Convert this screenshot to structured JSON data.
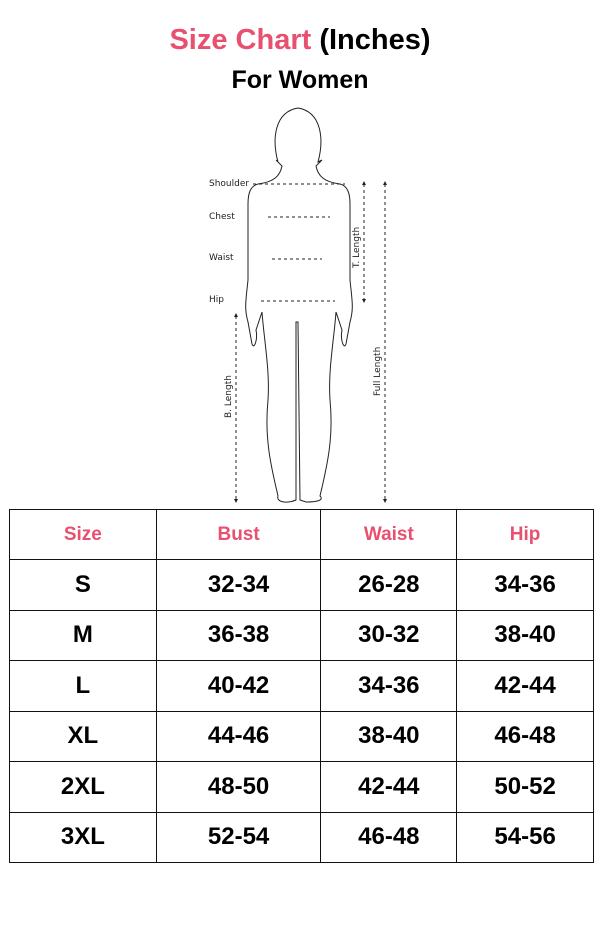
{
  "title": {
    "accent": "Size Chart",
    "rest": "(Inches)"
  },
  "subtitle": "For Women",
  "figure": {
    "labels": {
      "shoulder": "Shoulder",
      "chest": "Chest",
      "waist": "Waist",
      "hip": "Hip",
      "t_length": "T. Length",
      "b_length": "B. Length",
      "full_length": "Full  Length"
    }
  },
  "colors": {
    "accent": "#e8506f"
  },
  "table": {
    "headers": [
      "Size",
      "Bust",
      "Waist",
      "Hip"
    ],
    "rows": [
      [
        "S",
        "32-34",
        "26-28",
        "34-36"
      ],
      [
        "M",
        "36-38",
        "30-32",
        "38-40"
      ],
      [
        "L",
        "40-42",
        "34-36",
        "42-44"
      ],
      [
        "XL",
        "44-46",
        "38-40",
        "46-48"
      ],
      [
        "2XL",
        "48-50",
        "42-44",
        "50-52"
      ],
      [
        "3XL",
        "52-54",
        "46-48",
        "54-56"
      ]
    ]
  }
}
